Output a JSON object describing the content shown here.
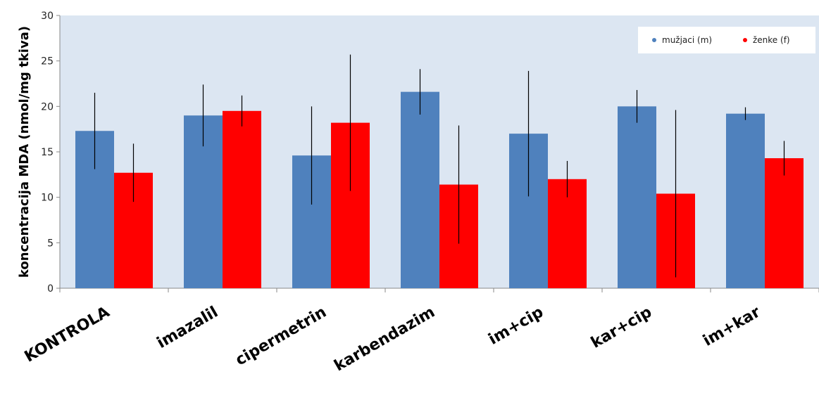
{
  "chart_data": {
    "type": "bar",
    "ylabel": "koncentracija MDA (nmol/mg tkiva)",
    "xlabel": "",
    "ylim": [
      0,
      30
    ],
    "yticks": [
      0,
      5,
      10,
      15,
      20,
      25,
      30
    ],
    "grid": false,
    "legend_position": "top-right",
    "categories": [
      "KONTROLA",
      "imazalil",
      "cipermetrin",
      "karbendazim",
      "im+cip",
      "kar+cip",
      "im+kar"
    ],
    "series": [
      {
        "name": "mužjaci (m)",
        "color": "#4f81bd",
        "values": [
          17.3,
          19.0,
          14.6,
          21.6,
          17.0,
          20.0,
          19.2
        ],
        "error": [
          4.2,
          3.4,
          5.4,
          2.5,
          6.9,
          1.8,
          0.7
        ]
      },
      {
        "name": "ženke (f)",
        "color": "#ff0000",
        "values": [
          12.7,
          19.5,
          18.2,
          11.4,
          12.0,
          10.4,
          14.3
        ],
        "error": [
          3.2,
          1.7,
          7.5,
          6.5,
          2.0,
          9.2,
          1.9
        ]
      }
    ],
    "plot_background": "#dce6f2"
  }
}
